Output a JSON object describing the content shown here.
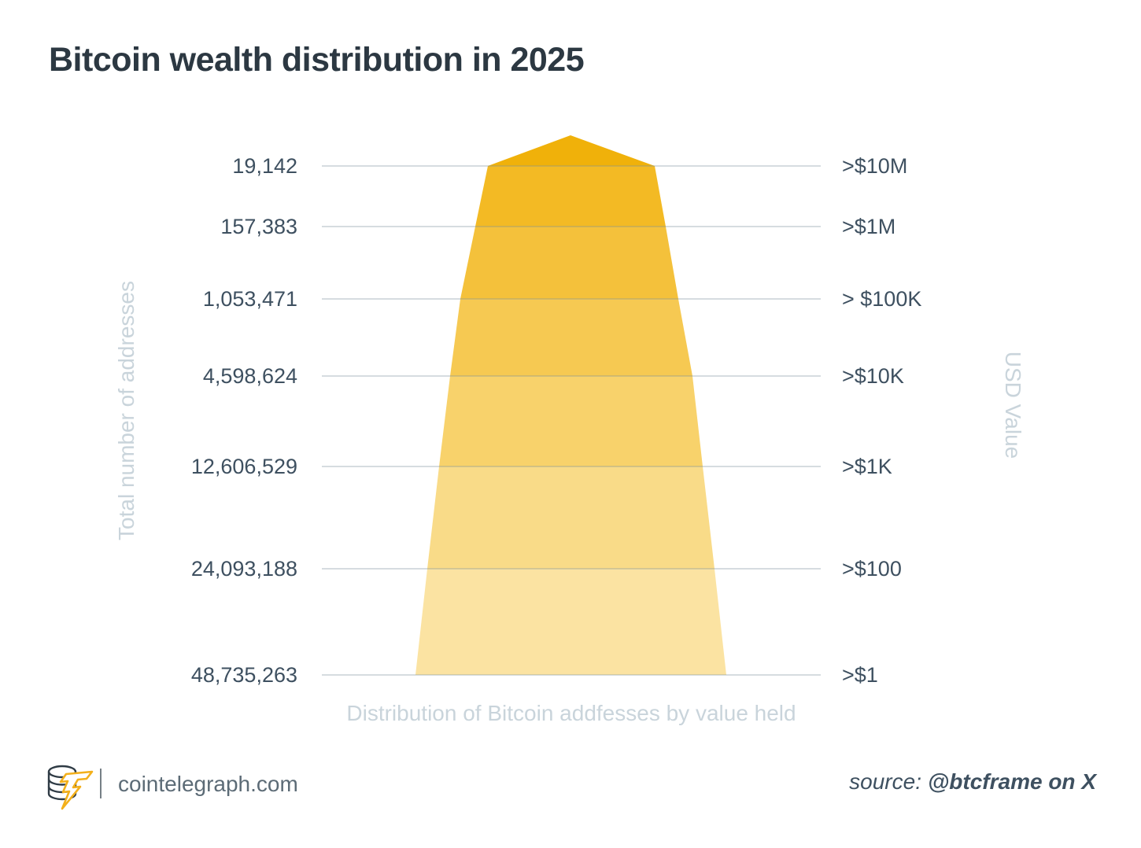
{
  "title": "Bitcoin wealth distribution in 2025",
  "chart_data": {
    "type": "funnel",
    "title": "Bitcoin wealth distribution in 2025",
    "xlabel": "Distribution of Bitcoin addfesses by value held",
    "ylabel_left": "Total number of addresses",
    "ylabel_right": "USD Value",
    "legend": "none",
    "grid": true,
    "rows": [
      {
        "addresses": 19142,
        "addresses_label": "19,142",
        "usd_value": ">$10M"
      },
      {
        "addresses": 157383,
        "addresses_label": "157,383",
        "usd_value": ">$1M"
      },
      {
        "addresses": 1053471,
        "addresses_label": "1,053,471",
        "usd_value": "> $100K"
      },
      {
        "addresses": 4598624,
        "addresses_label": "4,598,624",
        "usd_value": ">$10K"
      },
      {
        "addresses": 12606529,
        "addresses_label": "12,606,529",
        "usd_value": ">$1K"
      },
      {
        "addresses": 24093188,
        "addresses_label": "24,093,188",
        "usd_value": ">$100"
      },
      {
        "addresses": 48735263,
        "addresses_label": "48,735,263",
        "usd_value": ">$1"
      }
    ],
    "band_colors": [
      "#F0B10A",
      "#F3BA24",
      "#F4C13B",
      "#F6C952",
      "#F8D26B",
      "#F9DB88",
      "#FBE3A2"
    ],
    "gridline_color": "#CCD6DC"
  },
  "colors": {
    "title_text": "#2C3842",
    "label_text": "#3E5060",
    "axis_caption_text": "#C9D4DB",
    "accent_amber": "#F0B10A"
  },
  "footer": {
    "site": "cointelegraph.com",
    "source_prefix": "source:",
    "source_name": "@btcframe on X",
    "logo_icon": "cointelegraph-coin-and-bolt"
  }
}
